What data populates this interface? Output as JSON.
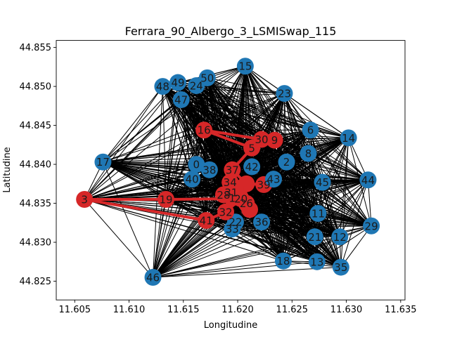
{
  "chart_data": {
    "type": "scatter",
    "title": "Ferrara_90_Albergo_3_LSMISwap_115",
    "xlabel": "Longitudine",
    "ylabel": "Latitudine",
    "xlim": [
      11.6033,
      11.6354
    ],
    "ylim": [
      44.8226,
      44.8559
    ],
    "xticks": [
      "11.605",
      "11.610",
      "11.615",
      "11.620",
      "11.625",
      "11.630",
      "11.635"
    ],
    "yticks": [
      "44.825",
      "44.830",
      "44.835",
      "44.840",
      "44.845",
      "44.850",
      "44.855"
    ],
    "grid": false,
    "colors": {
      "blue": "#1f77b4",
      "red": "#d62728",
      "edge": "#000000"
    },
    "nodes": [
      {
        "id": "0",
        "x": 11.6162,
        "y": 44.84,
        "selected": false
      },
      {
        "id": "1",
        "x": 11.6195,
        "y": 44.8357,
        "selected": true
      },
      {
        "id": "2",
        "x": 11.6245,
        "y": 44.8403,
        "selected": false
      },
      {
        "id": "3",
        "x": 11.6059,
        "y": 44.8355,
        "selected": true
      },
      {
        "id": "5",
        "x": 11.6213,
        "y": 44.8421,
        "selected": true
      },
      {
        "id": "6",
        "x": 11.6267,
        "y": 44.8444,
        "selected": false
      },
      {
        "id": "8",
        "x": 11.6265,
        "y": 44.8414,
        "selected": false
      },
      {
        "id": "9",
        "x": 11.6234,
        "y": 44.8431,
        "selected": true
      },
      {
        "id": "11",
        "x": 11.6274,
        "y": 44.8337,
        "selected": false
      },
      {
        "id": "12",
        "x": 11.6294,
        "y": 44.8307,
        "selected": false
      },
      {
        "id": "13",
        "x": 11.6273,
        "y": 44.8275,
        "selected": false
      },
      {
        "id": "14",
        "x": 11.6302,
        "y": 44.8434,
        "selected": false
      },
      {
        "id": "15",
        "x": 11.6207,
        "y": 44.8526,
        "selected": false
      },
      {
        "id": "16",
        "x": 11.6169,
        "y": 44.8444,
        "selected": true
      },
      {
        "id": "17",
        "x": 11.6076,
        "y": 44.8403,
        "selected": false
      },
      {
        "id": "18",
        "x": 11.6242,
        "y": 44.8276,
        "selected": false
      },
      {
        "id": "19",
        "x": 11.6134,
        "y": 44.8355,
        "selected": true
      },
      {
        "id": "20",
        "x": 11.6203,
        "y": 44.8356,
        "selected": true
      },
      {
        "id": "21",
        "x": 11.6271,
        "y": 44.8307,
        "selected": false
      },
      {
        "id": "22",
        "x": 11.6198,
        "y": 44.8326,
        "selected": false
      },
      {
        "id": "23",
        "x": 11.6243,
        "y": 44.8491,
        "selected": false
      },
      {
        "id": "24",
        "x": 11.6162,
        "y": 44.8501,
        "selected": false
      },
      {
        "id": "26",
        "x": 11.6208,
        "y": 44.835,
        "selected": true
      },
      {
        "id": "28",
        "x": 11.6187,
        "y": 44.8361,
        "selected": true
      },
      {
        "id": "29",
        "x": 11.6323,
        "y": 44.8321,
        "selected": false
      },
      {
        "id": "30",
        "x": 11.6222,
        "y": 44.8432,
        "selected": true
      },
      {
        "id": "31",
        "x": 11.6194,
        "y": 44.8364,
        "selected": true
      },
      {
        "id": "32",
        "x": 11.6189,
        "y": 44.8339,
        "selected": true
      },
      {
        "id": "33",
        "x": 11.6195,
        "y": 44.8317,
        "selected": false
      },
      {
        "id": "34",
        "x": 11.6193,
        "y": 44.8377,
        "selected": true
      },
      {
        "id": "35",
        "x": 11.6295,
        "y": 44.8268,
        "selected": false
      },
      {
        "id": "36",
        "x": 11.6222,
        "y": 44.8326,
        "selected": false
      },
      {
        "id": "37",
        "x": 11.6195,
        "y": 44.8393,
        "selected": true
      },
      {
        "id": "38",
        "x": 11.6174,
        "y": 44.8393,
        "selected": false
      },
      {
        "id": "39",
        "x": 11.6224,
        "y": 44.8374,
        "selected": true
      },
      {
        "id": "40",
        "x": 11.6158,
        "y": 44.8381,
        "selected": false
      },
      {
        "id": "41",
        "x": 11.6171,
        "y": 44.8328,
        "selected": true
      },
      {
        "id": "42",
        "x": 11.6213,
        "y": 44.8397,
        "selected": false
      },
      {
        "id": "43",
        "x": 11.6233,
        "y": 44.8381,
        "selected": false
      },
      {
        "id": "44",
        "x": 11.632,
        "y": 44.838,
        "selected": false
      },
      {
        "id": "45",
        "x": 11.6278,
        "y": 44.8377,
        "selected": false
      },
      {
        "id": "46",
        "x": 11.6122,
        "y": 44.8255,
        "selected": false
      },
      {
        "id": "47",
        "x": 11.6148,
        "y": 44.8483,
        "selected": false
      },
      {
        "id": "48",
        "x": 11.6131,
        "y": 44.85,
        "selected": false
      },
      {
        "id": "49",
        "x": 11.6145,
        "y": 44.8505,
        "selected": false
      },
      {
        "id": "50",
        "x": 11.6172,
        "y": 44.8511,
        "selected": false
      },
      {
        "id": "7",
        "x": 11.6201,
        "y": 44.8363,
        "selected": true
      },
      {
        "id": "25",
        "x": 11.6208,
        "y": 44.8375,
        "selected": true
      },
      {
        "id": "27",
        "x": 11.6211,
        "y": 44.8342,
        "selected": true
      },
      {
        "id": "4",
        "x": 11.6198,
        "y": 44.837,
        "selected": true
      }
    ],
    "route": [
      [
        "3",
        "19"
      ],
      [
        "19",
        "20"
      ],
      [
        "3",
        "41"
      ],
      [
        "41",
        "32"
      ],
      [
        "32",
        "20"
      ],
      [
        "20",
        "26"
      ],
      [
        "26",
        "27"
      ],
      [
        "27",
        "20"
      ],
      [
        "16",
        "5"
      ],
      [
        "16",
        "30"
      ],
      [
        "30",
        "9"
      ],
      [
        "5",
        "37"
      ],
      [
        "37",
        "31"
      ],
      [
        "31",
        "28"
      ],
      [
        "28",
        "1"
      ],
      [
        "1",
        "20"
      ],
      [
        "37",
        "25"
      ],
      [
        "25",
        "39"
      ],
      [
        "25",
        "4"
      ],
      [
        "4",
        "34"
      ],
      [
        "34",
        "1"
      ],
      [
        "7",
        "20"
      ]
    ],
    "label_hidden": [
      "7",
      "25",
      "27",
      "4"
    ]
  }
}
